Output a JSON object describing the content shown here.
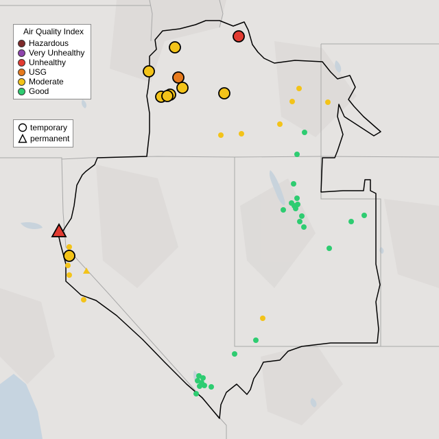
{
  "legend": {
    "title": "Air Quality Index",
    "categories": [
      {
        "label": "Hazardous",
        "color": "#7e2a2a"
      },
      {
        "label": "Very Unhealthy",
        "color": "#8e44ad"
      },
      {
        "label": "Unhealthy",
        "color": "#e23b32"
      },
      {
        "label": "USG",
        "color": "#e67a1e"
      },
      {
        "label": "Moderate",
        "color": "#f3c319"
      },
      {
        "label": "Good",
        "color": "#2ecc71"
      }
    ],
    "types": [
      {
        "label": "temporary",
        "icon": "circle-icon"
      },
      {
        "label": "permanent",
        "icon": "triangle-icon"
      }
    ]
  }
}
